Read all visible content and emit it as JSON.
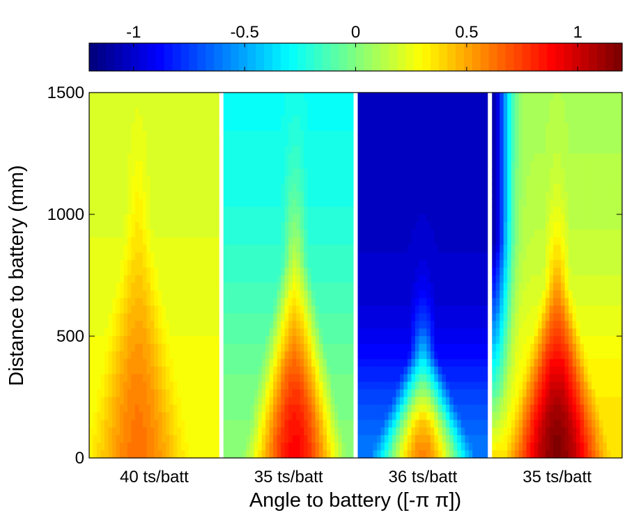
{
  "chart_data": {
    "type": "heatmap",
    "xlabel": "Angle to battery ([-π π])",
    "ylabel": "Distance to battery (mm)",
    "ylim": [
      0,
      1500
    ],
    "y_ticks": [
      "0",
      "500",
      "1000",
      "1500"
    ],
    "colorbar": {
      "position": "top",
      "range": [
        -1.2,
        1.2
      ],
      "colormap": "jet",
      "ticks": [
        {
          "value": -1,
          "label": "-1"
        },
        {
          "value": -0.5,
          "label": "-0.5"
        },
        {
          "value": 0,
          "label": "0"
        },
        {
          "value": 0.5,
          "label": "0.5"
        },
        {
          "value": 1,
          "label": "1"
        }
      ]
    },
    "panels": [
      {
        "label": "40 ts/batt",
        "peak_value": 0.62,
        "far_value": 0.18,
        "peak_center_angle": -0.5,
        "peak_extent_mm": 1000
      },
      {
        "label": "35 ts/batt",
        "peak_value": 0.88,
        "far_value": -0.28,
        "peak_center_angle": 0.2,
        "peak_extent_mm": 850
      },
      {
        "label": "36 ts/batt",
        "peak_value": 0.58,
        "far_value": -1.02,
        "peak_center_angle": 0.0,
        "peak_extent_mm": 450
      },
      {
        "label": "35 ts/batt",
        "peak_value": 1.18,
        "far_value": 0.1,
        "far_left_value": -1.1,
        "peak_center_angle": 0.0,
        "peak_extent_mm": 750
      }
    ],
    "grid": false
  }
}
